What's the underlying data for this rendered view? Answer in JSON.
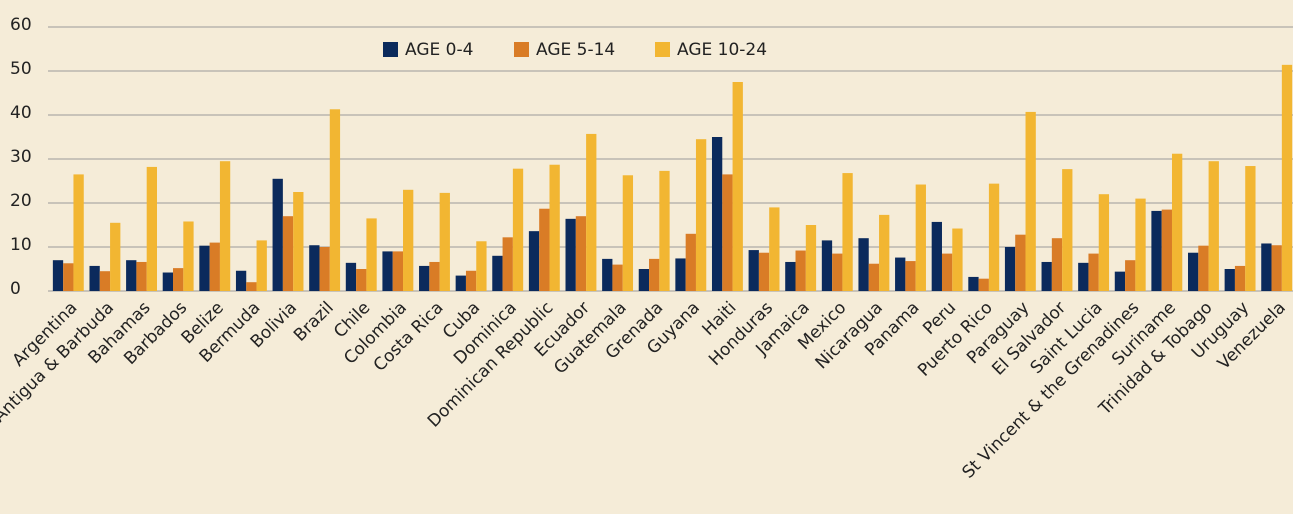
{
  "chart_data": {
    "type": "bar",
    "categories": [
      "Argentina",
      "Antigua & Barbuda",
      "Bahamas",
      "Barbados",
      "Belize",
      "Bermuda",
      "Bolivia",
      "Brazil",
      "Chile",
      "Colombia",
      "Costa Rica",
      "Cuba",
      "Dominica",
      "Dominican Republic",
      "Ecuador",
      "Guatemala",
      "Grenada",
      "Guyana",
      "Haiti",
      "Honduras",
      "Jamaica",
      "Mexico",
      "Nicaragua",
      "Panama",
      "Peru",
      "Puerto Rico",
      "Paraguay",
      "El Salvador",
      "Saint Lucia",
      "St Vincent & the Grenadines",
      "Suriname",
      "Trinidad & Tobago",
      "Uruguay",
      "Venezuela"
    ],
    "series": [
      {
        "name": "AGE 0-4",
        "color": "#0b2a5c",
        "values": [
          7,
          5.7,
          7,
          4.2,
          10.3,
          4.6,
          25.5,
          10.4,
          6.4,
          9,
          5.7,
          3.5,
          8,
          13.6,
          16.4,
          7.3,
          5,
          7.4,
          35,
          9.3,
          6.6,
          11.5,
          12,
          7.6,
          15.7,
          3.2,
          10,
          6.6,
          6.4,
          4.4,
          18.2,
          8.7,
          5,
          10.8
        ]
      },
      {
        "name": "AGE 5-14",
        "color": "#d97c26",
        "values": [
          6.3,
          4.5,
          6.6,
          5.2,
          11,
          2,
          17,
          10,
          5,
          9,
          6.6,
          4.6,
          12.2,
          18.7,
          17,
          6,
          7.3,
          13,
          26.5,
          8.7,
          9.2,
          8.5,
          6.2,
          6.8,
          8.5,
          2.8,
          12.8,
          12,
          8.5,
          7,
          18.5,
          10.3,
          5.7,
          10.4
        ]
      },
      {
        "name": "AGE 10-24",
        "color": "#f2b632",
        "values": [
          26.5,
          15.5,
          28.2,
          15.8,
          29.5,
          11.5,
          22.5,
          41.3,
          16.5,
          23,
          22.3,
          11.3,
          27.8,
          28.7,
          35.7,
          26.3,
          27.3,
          34.5,
          47.5,
          19,
          15,
          26.8,
          17.3,
          24.2,
          14.2,
          24.4,
          40.7,
          27.7,
          22,
          21,
          31.2,
          29.5,
          28.4,
          51.4
        ]
      }
    ],
    "ylim": [
      0,
      60
    ],
    "yticks": [
      0,
      10,
      20,
      30,
      40,
      50,
      60
    ],
    "grid": true
  }
}
